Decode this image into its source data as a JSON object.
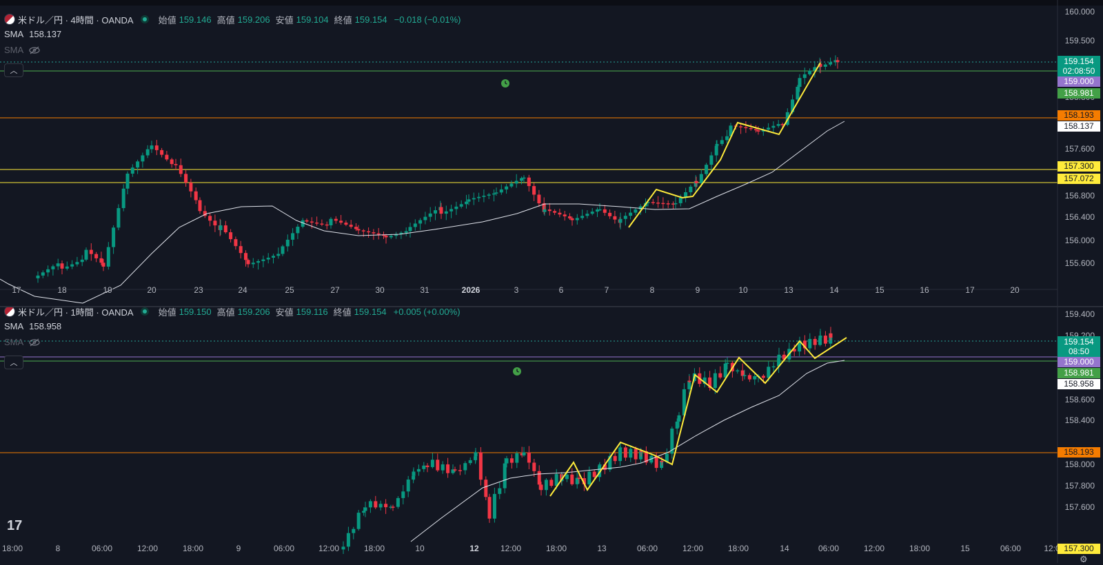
{
  "top": {
    "title": "米ドル／円 · 4時間 · OANDA",
    "ohlc": {
      "o_label": "始値",
      "o": "159.146",
      "h_label": "高値",
      "h": "159.206",
      "l_label": "安値",
      "l": "159.104",
      "c_label": "終値",
      "c": "159.154",
      "chg": "−0.018 (−0.01%)"
    },
    "sma_label": "SMA",
    "sma_value": "158.137",
    "sma2_label": "SMA",
    "price_axis": [
      "160.000",
      "159.500",
      "158.800",
      "157.600",
      "156.800",
      "156.400",
      "156.000",
      "155.600"
    ],
    "time_axis": [
      "17",
      "18",
      "19",
      "20",
      "23",
      "24",
      "25",
      "27",
      "30",
      "31",
      "2026",
      "3",
      "6",
      "7",
      "8",
      "9",
      "10",
      "13",
      "14",
      "15",
      "16",
      "17",
      "20"
    ],
    "tags": {
      "last": "159.154",
      "countdown": "02:08:50",
      "level_purple": "159.000",
      "level_green": "158.981",
      "level_orange": "158.193",
      "sma": "158.137",
      "level_yellow1": "157.300",
      "level_yellow2": "157.072"
    }
  },
  "bottom": {
    "title": "米ドル／円 · 1時間 · OANDA",
    "ohlc": {
      "o_label": "始値",
      "o": "159.150",
      "h_label": "高値",
      "h": "159.206",
      "l_label": "安値",
      "l": "159.116",
      "c_label": "終値",
      "c": "159.154",
      "chg": "+0.005 (+0.00%)"
    },
    "sma_label": "SMA",
    "sma_value": "158.958",
    "sma2_label": "SMA",
    "price_axis": [
      "159.400",
      "159.200",
      "158.600",
      "158.400",
      "158.000",
      "157.800",
      "157.600"
    ],
    "time_axis": [
      "18:00",
      "8",
      "06:00",
      "12:00",
      "18:00",
      "9",
      "06:00",
      "12:00",
      "18:00",
      "10",
      "12",
      "12:00",
      "18:00",
      "13",
      "06:00",
      "12:00",
      "18:00",
      "14",
      "06:00",
      "12:00",
      "18:00",
      "15",
      "06:00",
      "12:0"
    ],
    "tags": {
      "last": "159.154",
      "countdown": "08:50",
      "level_purple": "159.000",
      "level_green": "158.981",
      "sma": "158.958",
      "level_orange": "158.193",
      "level_yellow": "157.300"
    }
  },
  "colors": {
    "bg": "#131722",
    "up": "#089981",
    "down": "#f23645",
    "sma": "#e0e3eb",
    "orange": "#f57c00",
    "yellow": "#ffeb3b",
    "purple": "#9575cd",
    "green": "#43a047"
  },
  "icons": {
    "alarm": "alarm-clock-icon",
    "eye": "eye-off-icon",
    "logo": "tradingview-logo",
    "settings": "gear-icon"
  }
}
